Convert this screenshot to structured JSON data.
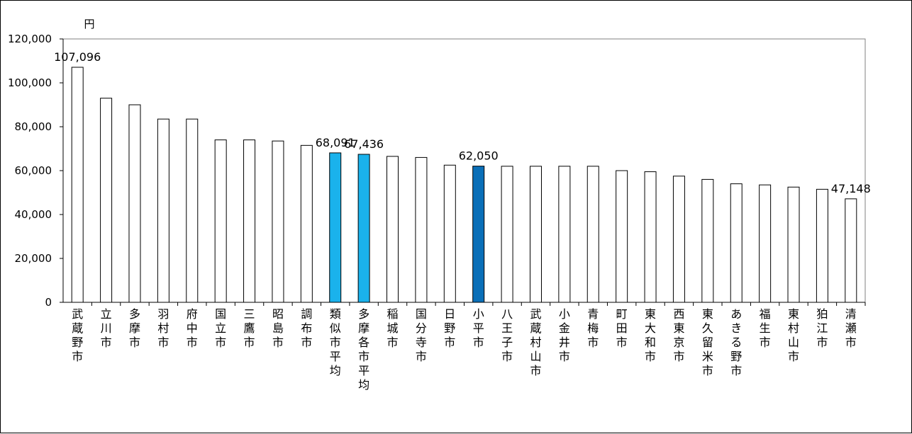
{
  "chart_data": {
    "type": "bar",
    "unit": "円",
    "ylim": [
      0,
      120000
    ],
    "yticks": [
      "0",
      "20,000",
      "40,000",
      "60,000",
      "80,000",
      "100,000",
      "120,000"
    ],
    "grid": false,
    "categories": [
      "武蔵野市",
      "立川市",
      "多摩市",
      "羽村市",
      "府中市",
      "国立市",
      "三鷹市",
      "昭島市",
      "調布市",
      "類似市平均",
      "多摩各市平均",
      "稲城市",
      "国分寺市",
      "日野市",
      "小平市",
      "八王子市",
      "武蔵村山市",
      "小金井市",
      "青梅市",
      "町田市",
      "東大和市",
      "西東京市",
      "東久留米市",
      "あきる野市",
      "福生市",
      "東村山市",
      "狛江市",
      "清瀬市"
    ],
    "values": [
      107096,
      93000,
      90000,
      83500,
      83500,
      74000,
      74000,
      73500,
      71500,
      68091,
      67436,
      66500,
      66000,
      62500,
      62050,
      62000,
      62000,
      62000,
      62000,
      60000,
      59500,
      57500,
      56000,
      54000,
      53500,
      52500,
      51500,
      47148
    ],
    "data_labels": [
      {
        "index": 0,
        "text": "107,096"
      },
      {
        "index": 9,
        "text": "68,091"
      },
      {
        "index": 10,
        "text": "67,436"
      },
      {
        "index": 14,
        "text": "62,050"
      },
      {
        "index": 27,
        "text": "47,148"
      }
    ],
    "colors": {
      "default": "#ffffff",
      "comparison": "#1ab2ec",
      "highlight": "#0a6fb8",
      "outline": "#000000"
    },
    "color_by_index": {
      "9": "comparison",
      "10": "comparison",
      "14": "highlight"
    }
  }
}
